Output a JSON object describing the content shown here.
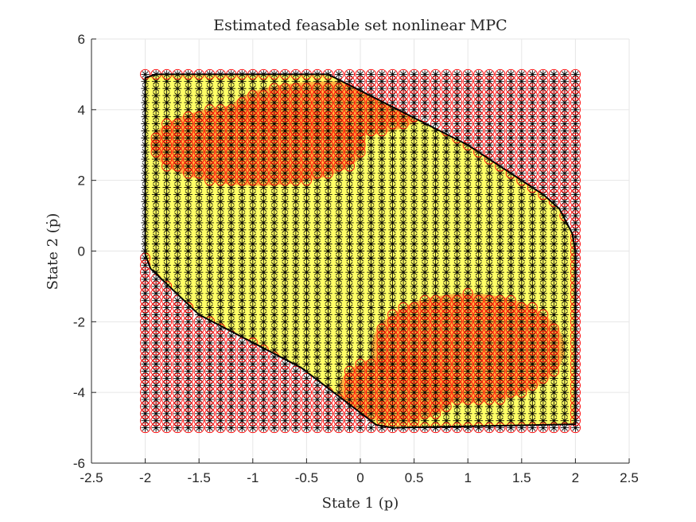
{
  "chart_data": {
    "type": "scatter",
    "title": "Estimated feasable set nonlinear MPC",
    "xlabel": "State 1 (p)",
    "ylabel": "State 2 (ṗ)",
    "xlim": [
      -2.5,
      2.5
    ],
    "ylim": [
      -6,
      6
    ],
    "xticks": [
      -2.5,
      -2,
      -1.5,
      -1,
      -0.5,
      0,
      0.5,
      1,
      1.5,
      2,
      2.5
    ],
    "yticks": [
      -6,
      -4,
      -2,
      0,
      2,
      4,
      6
    ],
    "grid": true,
    "grid_sampling": {
      "x_range": [
        -2,
        2
      ],
      "y_range": [
        -5,
        5
      ],
      "nx": 41,
      "ny": 51
    },
    "marker_series": [
      {
        "marker": "asterisk",
        "color": "#000000",
        "applies_to": "all grid points"
      },
      {
        "marker": "circle",
        "color": "#ff0000",
        "applies_to": "grid points outside the set"
      }
    ],
    "feasible_set_boundary": {
      "fill_color": "#ffff66",
      "edge_color": "#000000",
      "vertices": [
        [
          -2.0,
          4.9
        ],
        [
          -1.9,
          5.0
        ],
        [
          -0.3,
          5.0
        ],
        [
          1.0,
          3.0
        ],
        [
          1.7,
          1.6
        ],
        [
          1.85,
          1.2
        ],
        [
          1.97,
          0.5
        ],
        [
          2.0,
          0.0
        ],
        [
          2.0,
          -4.9
        ],
        [
          0.3,
          -5.0
        ],
        [
          0.15,
          -4.92
        ],
        [
          -0.55,
          -3.3
        ],
        [
          -1.5,
          -1.8
        ],
        [
          -1.95,
          -0.5
        ],
        [
          -2.0,
          -0.1
        ]
      ]
    },
    "orange_regions": [
      {
        "center": [
          -0.95,
          3.0
        ],
        "radii": [
          1.0,
          1.15
        ]
      },
      {
        "center": [
          -0.3,
          4.0
        ],
        "radii": [
          0.9,
          0.8
        ]
      },
      {
        "center": [
          1.0,
          -2.75
        ],
        "radii": [
          0.9,
          1.55
        ]
      },
      {
        "center": [
          0.35,
          -3.9
        ],
        "radii": [
          0.55,
          0.95
        ]
      }
    ]
  }
}
